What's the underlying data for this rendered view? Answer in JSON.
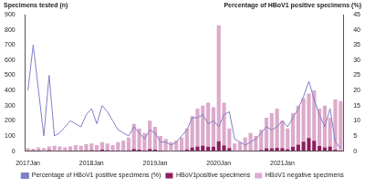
{
  "chart_data": {
    "type": "bar",
    "ylabel": "Specimens tested (n)",
    "y2label": "Percentage of HBoV1 positive specimens (%)",
    "categories": [
      "2017Jan",
      null,
      null,
      null,
      null,
      null,
      null,
      null,
      null,
      null,
      null,
      null,
      "2018Jan",
      null,
      null,
      null,
      null,
      null,
      null,
      null,
      null,
      null,
      null,
      null,
      "2019Jan",
      null,
      null,
      null,
      null,
      null,
      null,
      null,
      null,
      null,
      null,
      null,
      "2020Jan",
      null,
      null,
      null,
      null,
      null,
      null,
      null,
      null,
      null,
      null,
      null,
      "2021Jan",
      null,
      null,
      null,
      null,
      null,
      null,
      null,
      null,
      null,
      null,
      null
    ],
    "series": [
      {
        "name": "HBoV1positive specimens",
        "type": "bar",
        "color": "#8c1f5e",
        "values": [
          4,
          5,
          5,
          1,
          7,
          2,
          2,
          2,
          3,
          4,
          3,
          5,
          7,
          4,
          9,
          6,
          4,
          4,
          4,
          5,
          14,
          9,
          5,
          14,
          10,
          3,
          2,
          1,
          2,
          5,
          11,
          25,
          31,
          36,
          29,
          29,
          66,
          38,
          20,
          2,
          2,
          2,
          4,
          4,
          8,
          18,
          18,
          22,
          20,
          12,
          28,
          42,
          63,
          87,
          68,
          34,
          24,
          31,
          10,
          3
        ]
      },
      {
        "name": "HBoV1 negative specimens",
        "type": "bar",
        "color": "#dcaacb",
        "values": [
          16,
          10,
          20,
          19,
          23,
          33,
          28,
          23,
          27,
          36,
          32,
          40,
          43,
          36,
          51,
          44,
          36,
          56,
          66,
          85,
          166,
          141,
          115,
          186,
          150,
          97,
          78,
          59,
          68,
          85,
          139,
          205,
          249,
          264,
          291,
          261,
          764,
          282,
          130,
          48,
          58,
          88,
          116,
          96,
          132,
          202,
          232,
          258,
          180,
          138,
          222,
          258,
          287,
          293,
          332,
          246,
          276,
          189,
          330,
          327
        ]
      },
      {
        "name": "Percentage of HBoV1 positive specimens (%)",
        "type": "line",
        "color": "#7f7fc8",
        "axis": "y2",
        "values": [
          20,
          35,
          20,
          5,
          25,
          5,
          6,
          8,
          10,
          9,
          8,
          12,
          14,
          9,
          15,
          13,
          10,
          7,
          6,
          5,
          8,
          6,
          4,
          7,
          6,
          3,
          3,
          2,
          3,
          5,
          7,
          11,
          11,
          12,
          9,
          10,
          8,
          12,
          13,
          4,
          3,
          2,
          3,
          4,
          6,
          8,
          7,
          8,
          10,
          8,
          11,
          14,
          18,
          23,
          17,
          12,
          8,
          14,
          3,
          1
        ]
      }
    ],
    "ylim": [
      0,
      900
    ],
    "yticks": [
      0,
      100,
      200,
      300,
      400,
      500,
      600,
      700,
      800,
      900
    ],
    "y2lim": [
      0,
      45
    ],
    "y2ticks": [
      0,
      5,
      10,
      15,
      20,
      25,
      30,
      35,
      40,
      45
    ],
    "stacked": true,
    "grid": false,
    "legend": "bottom"
  }
}
